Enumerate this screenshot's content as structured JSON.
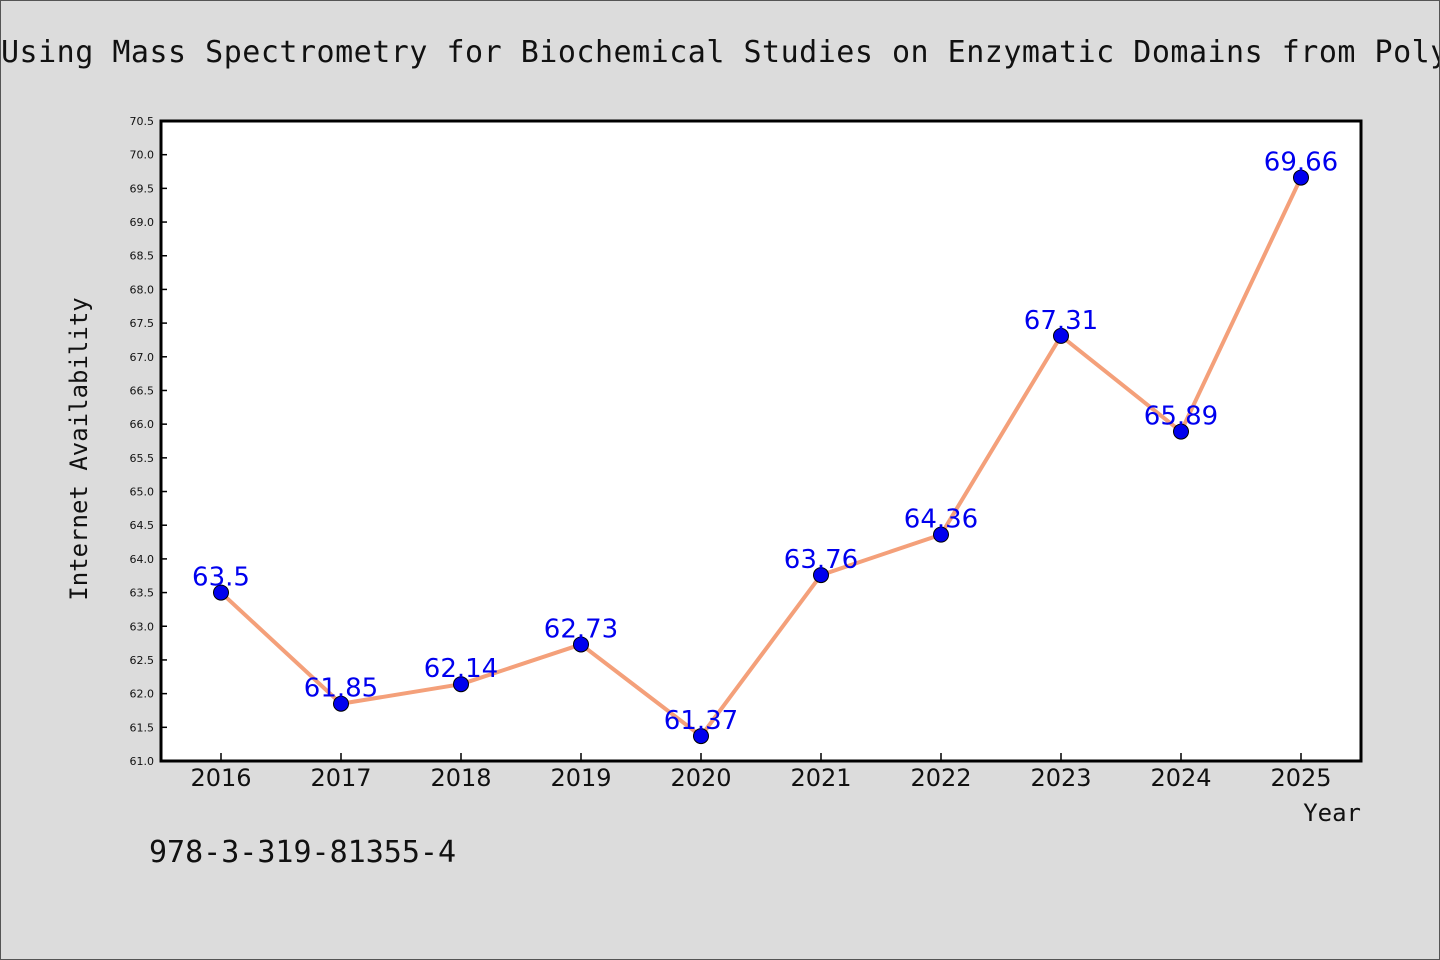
{
  "chart_data": {
    "type": "line",
    "title": "Using Mass Spectrometry for Biochemical Studies on Enzymatic Domains from Polyke",
    "xlabel": "Year",
    "ylabel": "Internet Availability",
    "categories": [
      "2016",
      "2017",
      "2018",
      "2019",
      "2020",
      "2021",
      "2022",
      "2023",
      "2024",
      "2025"
    ],
    "values": [
      63.5,
      61.85,
      62.14,
      62.73,
      61.37,
      63.76,
      64.36,
      67.31,
      65.89,
      69.66
    ],
    "data_labels": [
      "63.5",
      "61.85",
      "62.14",
      "62.73",
      "61.37",
      "63.76",
      "64.36",
      "67.31",
      "65.89",
      "69.66"
    ],
    "ylim": [
      61.0,
      70.5
    ],
    "yticks": [
      "61.0",
      "61.5",
      "62.0",
      "62.5",
      "63.0",
      "63.5",
      "64.0",
      "64.5",
      "65.0",
      "65.5",
      "66.0",
      "66.5",
      "67.0",
      "67.5",
      "68.0",
      "68.5",
      "69.0",
      "69.5",
      "70.0",
      "70.5"
    ],
    "grid": false,
    "legend": "none",
    "colors": {
      "line": "#f4a07a",
      "marker": "#0000ee",
      "labels": "#0000ee",
      "background": "#dcdcdc"
    }
  },
  "footer": {
    "isbn": "978-3-319-81355-4"
  }
}
